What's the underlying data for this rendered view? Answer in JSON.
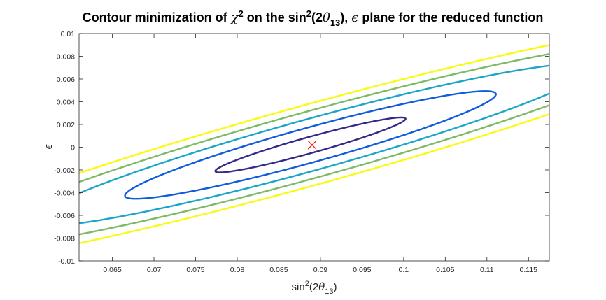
{
  "chart_data": {
    "type": "contour",
    "title": {
      "part1": "Contour minimization of ",
      "chi": "χ",
      "sup2": "2",
      "part2": " on the sin",
      "sup2b": "2",
      "part3": "(2",
      "theta": "θ",
      "sub13": "13",
      "part4": "), ",
      "eps": "ϵ",
      "part5": " plane for the reduced function"
    },
    "xlabel": {
      "base": "sin",
      "sup": "2",
      "open": "(2",
      "theta": "θ",
      "sub": "13",
      "close": ")"
    },
    "ylabel": "ϵ",
    "xlim": [
      0.061,
      0.1175
    ],
    "ylim": [
      -0.01,
      0.01
    ],
    "x_ticks": [
      0.065,
      0.07,
      0.075,
      0.08,
      0.085,
      0.09,
      0.095,
      0.1,
      0.105,
      0.11,
      0.115
    ],
    "x_tick_labels": [
      "0.065",
      "0.07",
      "0.075",
      "0.08",
      "0.085",
      "0.09",
      "0.095",
      "0.1",
      "0.105",
      "0.11",
      "0.115"
    ],
    "y_ticks": [
      -0.01,
      -0.008,
      -0.006,
      -0.004,
      -0.002,
      0,
      0.002,
      0.004,
      0.006,
      0.008,
      0.01
    ],
    "y_tick_labels": [
      "-0.01",
      "-0.008",
      "-0.006",
      "-0.004",
      "-0.002",
      "0",
      "0.002",
      "0.004",
      "0.006",
      "0.008",
      "0.01"
    ],
    "minimum": {
      "x": 0.089,
      "y": 0.0002,
      "marker": "x",
      "color": "#ff0000"
    },
    "contours": [
      {
        "level": 1,
        "color": "#352a87",
        "center": [
          0.0888,
          0.0002
        ],
        "a": 0.0132,
        "b": 0.0018,
        "angle_deg": 30.25
      },
      {
        "level": 2,
        "color": "#0f5cdd",
        "center": [
          0.0888,
          0.0002
        ],
        "a": 0.0257,
        "b": 0.0039,
        "angle_deg": 30.25
      },
      {
        "level": 3,
        "color": "#1aa6c8",
        "center": [
          0.0888,
          0.0002
        ],
        "a": 0.0388,
        "b": 0.00575,
        "angle_deg": 30.25
      },
      {
        "level": 4,
        "color": "#7dba64",
        "center": [
          0.0888,
          0.0002
        ],
        "a": 0.0497,
        "b": 0.0074,
        "angle_deg": 30.25
      },
      {
        "level": 5,
        "color": "#f9fb0e",
        "center": [
          0.0888,
          0.0002
        ],
        "a": 0.06,
        "b": 0.00893,
        "angle_deg": 30.25
      }
    ],
    "grid": false,
    "legend": "none"
  }
}
